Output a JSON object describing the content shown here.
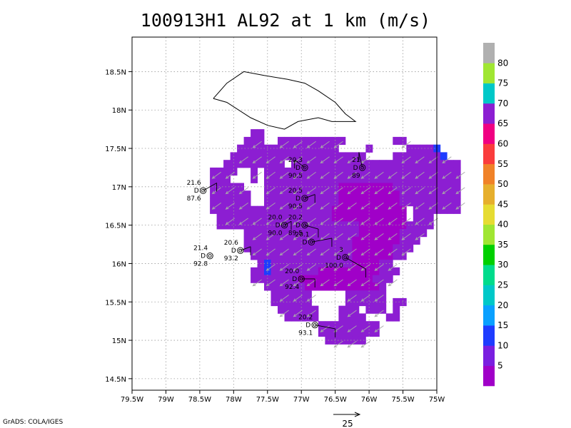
{
  "title": "100913H1 AL92 at 1 km (m/s)",
  "footer": "GrADS: COLA/IGES",
  "chart_data": {
    "type": "heatmap",
    "title": "100913H1 AL92 at 1 km (m/s)",
    "xlabel": "",
    "ylabel": "",
    "xlim": [
      -79.5,
      -75.0
    ],
    "ylim": [
      14.35,
      18.95
    ],
    "x_ticks": [
      {
        "value": -79.5,
        "label": "79.5W"
      },
      {
        "value": -79.0,
        "label": "79W"
      },
      {
        "value": -78.5,
        "label": "78.5W"
      },
      {
        "value": -78.0,
        "label": "78W"
      },
      {
        "value": -77.5,
        "label": "77.5W"
      },
      {
        "value": -77.0,
        "label": "77W"
      },
      {
        "value": -76.5,
        "label": "76.5W"
      },
      {
        "value": -76.0,
        "label": "76W"
      },
      {
        "value": -75.5,
        "label": "75.5W"
      },
      {
        "value": -75.0,
        "label": "75W"
      }
    ],
    "y_ticks": [
      {
        "value": 14.5,
        "label": "14.5N"
      },
      {
        "value": 15.0,
        "label": "15N"
      },
      {
        "value": 15.5,
        "label": "15.5N"
      },
      {
        "value": 16.0,
        "label": "16N"
      },
      {
        "value": 16.5,
        "label": "16.5N"
      },
      {
        "value": 17.0,
        "label": "17N"
      },
      {
        "value": 17.5,
        "label": "17.5N"
      },
      {
        "value": 18.0,
        "label": "18N"
      },
      {
        "value": 18.5,
        "label": "18.5N"
      }
    ],
    "grid": true,
    "colorbar": {
      "labels": [
        "5",
        "10",
        "15",
        "20",
        "25",
        "30",
        "35",
        "40",
        "45",
        "50",
        "55",
        "60",
        "65",
        "70",
        "75",
        "80"
      ],
      "colors": [
        "#a000c8",
        "#7a1ee0",
        "#1e3cff",
        "#0aa0ff",
        "#00c8c8",
        "#00dc8c",
        "#00d000",
        "#a0e632",
        "#e6dc32",
        "#e6af2d",
        "#f08228",
        "#fa3c3c",
        "#f00082",
        "#8c1ed2",
        "#00c8c8",
        "#a0e632",
        "#b0b0b0"
      ]
    },
    "field": {
      "lon_min": -78.55,
      "lat_max": 17.85,
      "step": 0.1,
      "rows": [
        "..........",
        "........##.....................",
        ".......###..##########.......##.....",
        "......###############....#.....####W",
        ".....####################....#######W",
        "....#########.#########################",
        "..####..#.#############################",
        "..###...#.#############################",
        "..#####...###########MMMMMMMM##########",
        "..######..###########MMMMMMMMM#########",
        "..######..###########MMMMMMMMM#########",
        "..##################MMMMMMMMMMM.#######",
        "...#################MMMMMMMMMMM.###",
        "...#####################MMMMMMM####",
        ".......#################MMMMMM####",
        ".......################MMMMMMM###",
        ".......################MMMMMM###",
        "........###############MMMMMM##",
        ".........#W############MMMM##",
        "........##W#######MMMMMMMMM###",
        "........#######MMMMMMMMMMM###",
        "..........######MMMMMMMMMMM#",
        "...........######.....######",
        "...........######.....######.##",
        "............######...###.###.#",
        ".............#####...####...##",
        "..................#########",
        "..................#########",
        "...................######"
      ]
    },
    "wind_components": {
      "u": -3.5,
      "v": -2.5
    },
    "vector_reference": {
      "value": 25,
      "label": "25"
    },
    "coastline_outline": [
      [
        -78.3,
        18.15
      ],
      [
        -78.1,
        18.35
      ],
      [
        -77.85,
        18.5
      ],
      [
        -77.55,
        18.45
      ],
      [
        -77.2,
        18.4
      ],
      [
        -76.95,
        18.35
      ],
      [
        -76.75,
        18.25
      ],
      [
        -76.5,
        18.1
      ],
      [
        -76.35,
        17.95
      ],
      [
        -76.2,
        17.85
      ],
      [
        -76.55,
        17.85
      ],
      [
        -76.75,
        17.9
      ],
      [
        -77.05,
        17.85
      ],
      [
        -77.25,
        17.75
      ],
      [
        -77.5,
        17.8
      ],
      [
        -77.75,
        17.9
      ],
      [
        -78.1,
        18.1
      ],
      [
        -78.3,
        18.15
      ]
    ],
    "dropsondes": [
      {
        "lon": -76.95,
        "lat": 17.25,
        "top": "20.3",
        "side": "D",
        "bottom": "90.5",
        "line_dx": -0.15,
        "line_dy": 0.1
      },
      {
        "lon": -76.1,
        "lat": 17.25,
        "top": "21",
        "side": "D",
        "bottom": "89",
        "line_dx": -0.05,
        "line_dy": 0.2
      },
      {
        "lon": -78.45,
        "lat": 16.95,
        "top": "21.6",
        "side": "D",
        "bottom": "87.6",
        "line_dx": 0.2,
        "line_dy": 0.1
      },
      {
        "lon": -76.95,
        "lat": 16.85,
        "top": "20.5",
        "side": "D",
        "bottom": "90.5",
        "line_dx": 0.15,
        "line_dy": 0.05
      },
      {
        "lon": -76.95,
        "lat": 16.5,
        "top": "20.2",
        "side": "D",
        "bottom": "89.5",
        "line_dx": 0.2,
        "line_dy": -0.05
      },
      {
        "lon": -77.25,
        "lat": 16.5,
        "top": "20.0",
        "side": "D",
        "bottom": "90.0",
        "line_dx": 0.1,
        "line_dy": 0.05
      },
      {
        "lon": -76.85,
        "lat": 16.28,
        "top": "20.1",
        "side": "D",
        "bottom": "",
        "line_dx": 0.3,
        "line_dy": 0.05
      },
      {
        "lon": -77.9,
        "lat": 16.17,
        "top": "20.6",
        "side": "D",
        "bottom": "93.2",
        "line_dx": 0.15,
        "line_dy": 0.05
      },
      {
        "lon": -78.35,
        "lat": 16.1,
        "top": "21.4",
        "side": "D",
        "bottom": "92.8",
        "line_dx": 0.0,
        "line_dy": 0.0
      },
      {
        "lon": -76.35,
        "lat": 16.08,
        "top": "3",
        "side": "D",
        "bottom": "100.0",
        "line_dx": 0.3,
        "line_dy": -0.15
      },
      {
        "lon": -77.0,
        "lat": 15.8,
        "top": "20.0",
        "side": "D",
        "bottom": "92.4",
        "line_dx": 0.2,
        "line_dy": 0.0
      },
      {
        "lon": -76.8,
        "lat": 15.2,
        "top": "20.2",
        "side": "D",
        "bottom": "93.1",
        "line_dx": 0.3,
        "line_dy": -0.05
      }
    ]
  }
}
